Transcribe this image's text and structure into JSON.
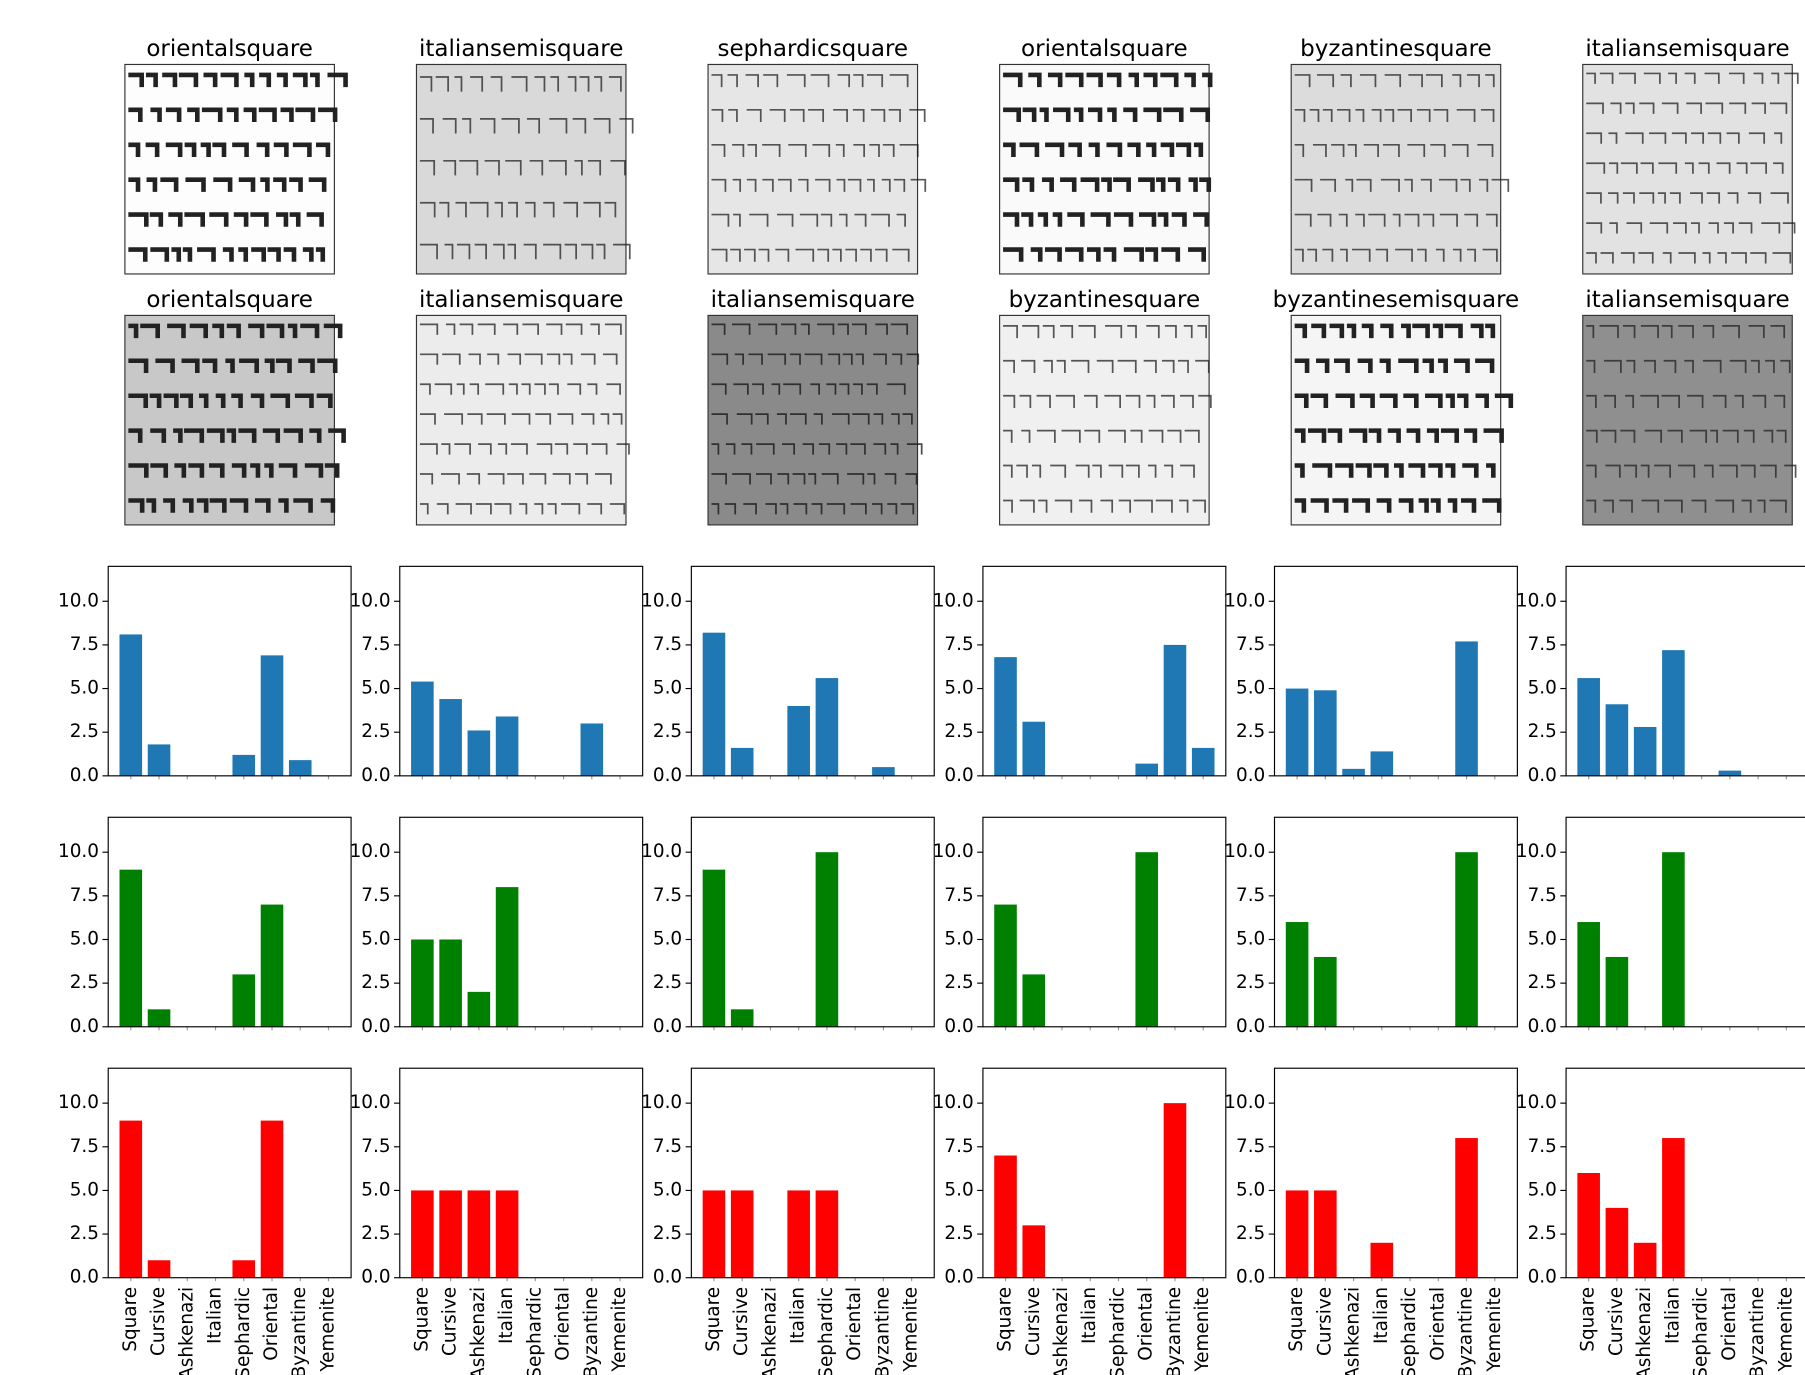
{
  "images": [
    {
      "title": "orientalsquare"
    },
    {
      "title": "italiansemisquare"
    },
    {
      "title": "sephardicsquare"
    },
    {
      "title": "orientalsquare"
    },
    {
      "title": "byzantinesquare"
    },
    {
      "title": "italiansemisquare"
    },
    {
      "title": "orientalsquare"
    },
    {
      "title": "italiansemisquare"
    },
    {
      "title": "italiansemisquare"
    },
    {
      "title": "byzantinesquare"
    },
    {
      "title": "byzantinesemisquare"
    },
    {
      "title": "italiansemisquare"
    }
  ],
  "chart_data": [
    {
      "type": "bar",
      "color": "#1f77b4",
      "values": [
        8.1,
        1.8,
        0,
        0,
        1.2,
        6.9,
        0.9,
        0
      ],
      "ylim": [
        0,
        12
      ],
      "yticks": [
        {
          "value": 0,
          "label": "0.0"
        },
        2.5,
        {
          "value": 5,
          "label": "5.0"
        },
        7.5,
        {
          "value": 10,
          "label": "10.0"
        }
      ]
    },
    {
      "type": "bar",
      "color": "#1f77b4",
      "values": [
        5.4,
        4.4,
        2.6,
        3.4,
        0,
        0,
        3.0,
        0
      ],
      "ylim": [
        0,
        12
      ],
      "yticks": [
        {
          "value": 0,
          "label": "0.0"
        },
        2.5,
        {
          "value": 5,
          "label": "5.0"
        },
        7.5,
        {
          "value": 10,
          "label": "10.0"
        }
      ]
    },
    {
      "type": "bar",
      "color": "#1f77b4",
      "values": [
        8.2,
        1.6,
        0,
        4.0,
        5.6,
        0,
        0.5,
        0
      ],
      "ylim": [
        0,
        12
      ],
      "yticks": [
        {
          "value": 0,
          "label": "0.0"
        },
        2.5,
        {
          "value": 5,
          "label": "5.0"
        },
        7.5,
        {
          "value": 10,
          "label": "10.0"
        }
      ]
    },
    {
      "type": "bar",
      "color": "#1f77b4",
      "values": [
        6.8,
        3.1,
        0,
        0,
        0,
        0.7,
        7.5,
        1.6
      ],
      "ylim": [
        0,
        12
      ],
      "yticks": [
        {
          "value": 0,
          "label": "0.0"
        },
        2.5,
        {
          "value": 5,
          "label": "5.0"
        },
        7.5,
        {
          "value": 10,
          "label": "10.0"
        }
      ]
    },
    {
      "type": "bar",
      "color": "#1f77b4",
      "values": [
        5.0,
        4.9,
        0.4,
        1.4,
        0,
        0,
        7.7,
        0
      ],
      "ylim": [
        0,
        12
      ],
      "yticks": [
        {
          "value": 0,
          "label": "0.0"
        },
        2.5,
        {
          "value": 5,
          "label": "5.0"
        },
        7.5,
        {
          "value": 10,
          "label": "10.0"
        }
      ]
    },
    {
      "type": "bar",
      "color": "#1f77b4",
      "values": [
        5.6,
        4.1,
        2.8,
        7.2,
        0,
        0.3,
        0,
        0
      ],
      "ylim": [
        0,
        12
      ],
      "yticks": [
        {
          "value": 0,
          "label": "0.0"
        },
        2.5,
        {
          "value": 5,
          "label": "5.0"
        },
        7.5,
        {
          "value": 10,
          "label": "10.0"
        }
      ]
    },
    {
      "type": "bar",
      "color": "#008000",
      "values": [
        9,
        1,
        0,
        0,
        3,
        7,
        0,
        0
      ],
      "ylim": [
        0,
        12
      ],
      "yticks": [
        {
          "value": 0,
          "label": "0.0"
        },
        2.5,
        {
          "value": 5,
          "label": "5.0"
        },
        7.5,
        {
          "value": 10,
          "label": "10.0"
        }
      ]
    },
    {
      "type": "bar",
      "color": "#008000",
      "values": [
        5,
        5,
        2,
        8,
        0,
        0,
        0,
        0
      ],
      "ylim": [
        0,
        12
      ],
      "yticks": [
        {
          "value": 0,
          "label": "0.0"
        },
        2.5,
        {
          "value": 5,
          "label": "5.0"
        },
        7.5,
        {
          "value": 10,
          "label": "10.0"
        }
      ]
    },
    {
      "type": "bar",
      "color": "#008000",
      "values": [
        9,
        1,
        0,
        0,
        10,
        0,
        0,
        0
      ],
      "ylim": [
        0,
        12
      ],
      "yticks": [
        {
          "value": 0,
          "label": "0.0"
        },
        2.5,
        {
          "value": 5,
          "label": "5.0"
        },
        7.5,
        {
          "value": 10,
          "label": "10.0"
        }
      ]
    },
    {
      "type": "bar",
      "color": "#008000",
      "values": [
        7,
        3,
        0,
        0,
        0,
        10,
        0,
        0
      ],
      "ylim": [
        0,
        12
      ],
      "yticks": [
        {
          "value": 0,
          "label": "0.0"
        },
        2.5,
        {
          "value": 5,
          "label": "5.0"
        },
        7.5,
        {
          "value": 10,
          "label": "10.0"
        }
      ]
    },
    {
      "type": "bar",
      "color": "#008000",
      "values": [
        6,
        4,
        0,
        0,
        0,
        0,
        10,
        0
      ],
      "ylim": [
        0,
        12
      ],
      "yticks": [
        {
          "value": 0,
          "label": "0.0"
        },
        2.5,
        {
          "value": 5,
          "label": "5.0"
        },
        7.5,
        {
          "value": 10,
          "label": "10.0"
        }
      ]
    },
    {
      "type": "bar",
      "color": "#008000",
      "values": [
        6,
        4,
        0,
        10,
        0,
        0,
        0,
        0
      ],
      "ylim": [
        0,
        12
      ],
      "yticks": [
        {
          "value": 0,
          "label": "0.0"
        },
        2.5,
        {
          "value": 5,
          "label": "5.0"
        },
        7.5,
        {
          "value": 10,
          "label": "10.0"
        }
      ]
    },
    {
      "type": "bar",
      "color": "#ff0000",
      "categories": [
        "Square",
        "Cursive",
        "Ashkenazi",
        "Italian",
        "Sephardic",
        "Oriental",
        "Byzantine",
        "Yemenite"
      ],
      "values": [
        9,
        1,
        0,
        0,
        1,
        9,
        0,
        0
      ],
      "ylim": [
        0,
        12
      ],
      "yticks": [
        {
          "value": 0,
          "label": "0.0"
        },
        2.5,
        {
          "value": 5,
          "label": "5.0"
        },
        7.5,
        {
          "value": 10,
          "label": "10.0"
        }
      ]
    },
    {
      "type": "bar",
      "color": "#ff0000",
      "categories": [
        "Square",
        "Cursive",
        "Ashkenazi",
        "Italian",
        "Sephardic",
        "Oriental",
        "Byzantine",
        "Yemenite"
      ],
      "values": [
        5,
        5,
        5,
        5,
        0,
        0,
        0,
        0
      ],
      "ylim": [
        0,
        12
      ],
      "yticks": [
        {
          "value": 0,
          "label": "0.0"
        },
        2.5,
        {
          "value": 5,
          "label": "5.0"
        },
        7.5,
        {
          "value": 10,
          "label": "10.0"
        }
      ]
    },
    {
      "type": "bar",
      "color": "#ff0000",
      "categories": [
        "Square",
        "Cursive",
        "Ashkenazi",
        "Italian",
        "Sephardic",
        "Oriental",
        "Byzantine",
        "Yemenite"
      ],
      "values": [
        5,
        5,
        0,
        5,
        5,
        0,
        0,
        0
      ],
      "ylim": [
        0,
        12
      ],
      "yticks": [
        {
          "value": 0,
          "label": "0.0"
        },
        2.5,
        {
          "value": 5,
          "label": "5.0"
        },
        7.5,
        {
          "value": 10,
          "label": "10.0"
        }
      ]
    },
    {
      "type": "bar",
      "color": "#ff0000",
      "categories": [
        "Square",
        "Cursive",
        "Ashkenazi",
        "Italian",
        "Sephardic",
        "Oriental",
        "Byzantine",
        "Yemenite"
      ],
      "values": [
        7,
        3,
        0,
        0,
        0,
        0,
        10,
        0
      ],
      "ylim": [
        0,
        12
      ],
      "yticks": [
        {
          "value": 0,
          "label": "0.0"
        },
        2.5,
        {
          "value": 5,
          "label": "5.0"
        },
        7.5,
        {
          "value": 10,
          "label": "10.0"
        }
      ]
    },
    {
      "type": "bar",
      "color": "#ff0000",
      "categories": [
        "Square",
        "Cursive",
        "Ashkenazi",
        "Italian",
        "Sephardic",
        "Oriental",
        "Byzantine",
        "Yemenite"
      ],
      "values": [
        5,
        5,
        0,
        2,
        0,
        0,
        8,
        0
      ],
      "ylim": [
        0,
        12
      ],
      "yticks": [
        {
          "value": 0,
          "label": "0.0"
        },
        2.5,
        {
          "value": 5,
          "label": "5.0"
        },
        7.5,
        {
          "value": 10,
          "label": "10.0"
        }
      ]
    },
    {
      "type": "bar",
      "color": "#ff0000",
      "categories": [
        "Square",
        "Cursive",
        "Ashkenazi",
        "Italian",
        "Sephardic",
        "Oriental",
        "Byzantine",
        "Yemenite"
      ],
      "values": [
        6,
        4,
        2,
        8,
        0,
        0,
        0,
        0
      ],
      "ylim": [
        0,
        12
      ],
      "yticks": [
        {
          "value": 0,
          "label": "0.0"
        },
        2.5,
        {
          "value": 5,
          "label": "5.0"
        },
        7.5,
        {
          "value": 10,
          "label": "10.0"
        }
      ]
    }
  ]
}
